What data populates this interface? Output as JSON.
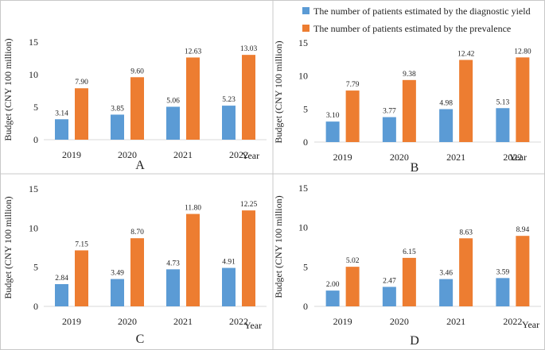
{
  "colors": {
    "series1": "#5b9bd5",
    "series2": "#ed7d31"
  },
  "legend": {
    "series1": "The number of patients estimated by the diagnostic yield",
    "series2": "The number of patients estimated by the prevalence"
  },
  "chart_data": [
    {
      "type": "bar",
      "panel": "A",
      "categories": [
        "2019",
        "2020",
        "2021",
        "2022"
      ],
      "series": [
        {
          "name": "The number of patients estimated by the diagnostic yield",
          "values": [
            3.14,
            3.85,
            5.06,
            5.23
          ]
        },
        {
          "name": "The number of patients estimated by the prevalence",
          "values": [
            7.9,
            9.6,
            12.63,
            13.03
          ]
        }
      ],
      "data_labels": [
        [
          "3.14",
          "3.85",
          "5.06",
          "5.23"
        ],
        [
          "7.90",
          "9.60",
          "12.63",
          "13.03"
        ]
      ],
      "ylabel": "Budget (CNY 100 million)",
      "xlabel": "Year",
      "ylim": [
        0,
        15
      ],
      "yticks": [
        "0",
        "5",
        "10",
        "15"
      ]
    },
    {
      "type": "bar",
      "panel": "B",
      "categories": [
        "2019",
        "2020",
        "2021",
        "2022"
      ],
      "series": [
        {
          "name": "The number of patients estimated by the diagnostic yield",
          "values": [
            3.1,
            3.77,
            4.98,
            5.13
          ]
        },
        {
          "name": "The number of patients estimated by the prevalence",
          "values": [
            7.79,
            9.38,
            12.42,
            12.8
          ]
        }
      ],
      "data_labels": [
        [
          "3.10",
          "3.77",
          "4.98",
          "5.13"
        ],
        [
          "7.79",
          "9.38",
          "12.42",
          "12.80"
        ]
      ],
      "ylabel": "Budget (CNY 100 million)",
      "xlabel": "Year",
      "ylim": [
        0,
        15
      ],
      "yticks": [
        "0",
        "5",
        "10",
        "15"
      ]
    },
    {
      "type": "bar",
      "panel": "C",
      "categories": [
        "2019",
        "2020",
        "2021",
        "2022"
      ],
      "series": [
        {
          "name": "The number of patients estimated by the diagnostic yield",
          "values": [
            2.84,
            3.49,
            4.73,
            4.91
          ]
        },
        {
          "name": "The number of patients estimated by the prevalence",
          "values": [
            7.15,
            8.7,
            11.8,
            12.25
          ]
        }
      ],
      "data_labels": [
        [
          "2.84",
          "3.49",
          "4.73",
          "4.91"
        ],
        [
          "7.15",
          "8.70",
          "11.80",
          "12.25"
        ]
      ],
      "ylabel": "Budget (CNY 100 million)",
      "xlabel": "Year",
      "ylim": [
        0,
        15
      ],
      "yticks": [
        "0",
        "5",
        "10",
        "15"
      ]
    },
    {
      "type": "bar",
      "panel": "D",
      "categories": [
        "2019",
        "2020",
        "2021",
        "2022"
      ],
      "series": [
        {
          "name": "The number of patients estimated by the diagnostic yield",
          "values": [
            2.0,
            2.47,
            3.46,
            3.59
          ]
        },
        {
          "name": "The number of patients estimated by the prevalence",
          "values": [
            5.02,
            6.15,
            8.63,
            8.94
          ]
        }
      ],
      "data_labels": [
        [
          "2.00",
          "2.47",
          "3.46",
          "3.59"
        ],
        [
          "5.02",
          "6.15",
          "8.63",
          "8.94"
        ]
      ],
      "ylabel": "Budget (CNY 100 million)",
      "xlabel": "Year",
      "ylim": [
        0,
        15
      ],
      "yticks": [
        "0",
        "5",
        "10",
        "15"
      ]
    }
  ]
}
